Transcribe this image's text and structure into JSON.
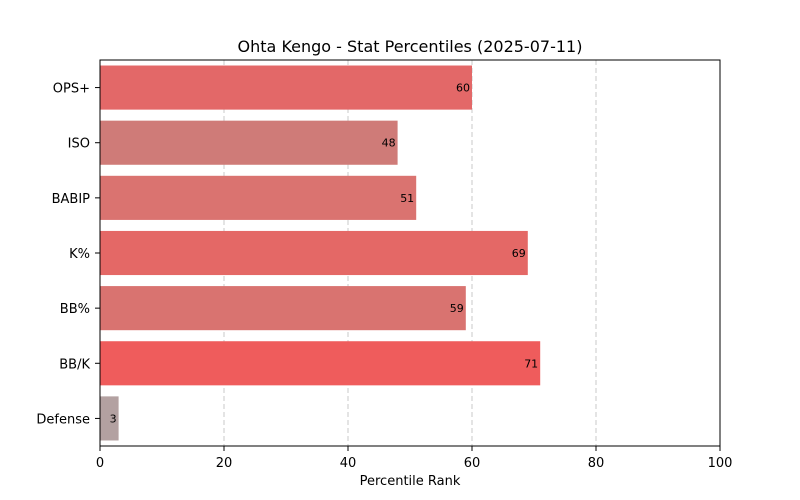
{
  "chart_data": {
    "type": "bar",
    "orientation": "horizontal",
    "title": "Ohta Kengo - Stat Percentiles (2025-07-11)",
    "xlabel": "Percentile Rank",
    "ylabel": "",
    "xlim": [
      0,
      100
    ],
    "xticks": [
      0,
      20,
      40,
      60,
      80,
      100
    ],
    "grid": "x-dashed",
    "categories": [
      "OPS+",
      "ISO",
      "BABIP",
      "K%",
      "BB%",
      "BB/K",
      "Defense"
    ],
    "values": [
      60,
      48,
      51,
      69,
      59,
      71,
      3
    ],
    "bar_colors": [
      "#e36868",
      "#cf7b78",
      "#da7370",
      "#e46866",
      "#d97370",
      "#ef5c5c",
      "#b3a1a1"
    ]
  }
}
